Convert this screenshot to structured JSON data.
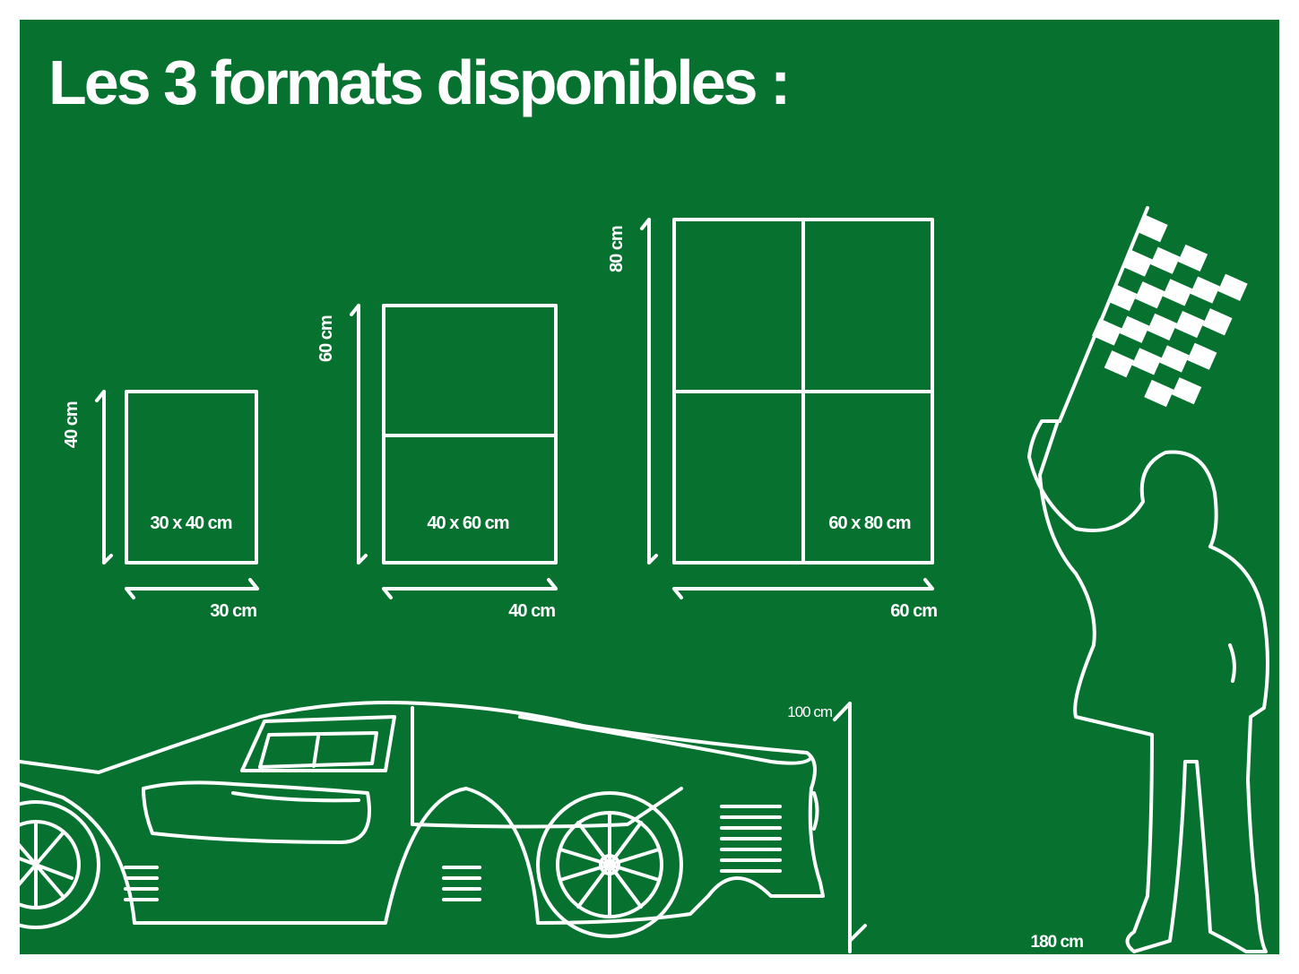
{
  "title": "Les 3 formats disponibles :",
  "colors": {
    "background": "#077230",
    "line": "#ffffff"
  },
  "formats": [
    {
      "label": "30 x 40 cm",
      "width_label": "30 cm",
      "height_label": "40 cm",
      "panels": 1
    },
    {
      "label": "40 x 60 cm",
      "width_label": "40 cm",
      "height_label": "60 cm",
      "panels": 2
    },
    {
      "label": "60 x 80 cm",
      "width_label": "60 cm",
      "height_label": "80 cm",
      "panels": 4
    }
  ],
  "car_height_label": "100 cm",
  "person_height_label": "180 cm"
}
